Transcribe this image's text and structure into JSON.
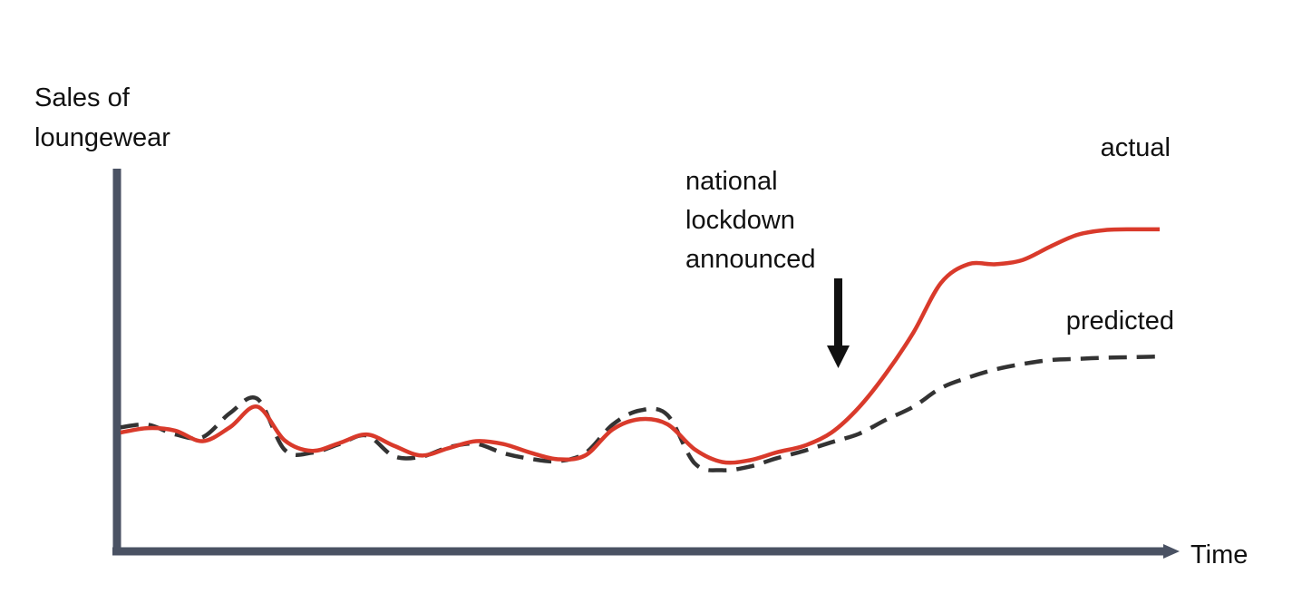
{
  "chart_data": {
    "type": "line",
    "title": "",
    "ylabel": [
      "Sales of",
      "loungewear"
    ],
    "xlabel": "Time",
    "x_ticks": false,
    "y_ticks": false,
    "grid": false,
    "legend": "inline labels at right end of lines",
    "annotation": {
      "lines": [
        "national",
        "lockdown",
        "announced"
      ],
      "arrow": "pointing down to the actual line"
    },
    "series": [
      {
        "name": "actual",
        "color": "#d93a2b",
        "style": "solid",
        "values": [
          5.47,
          5.68,
          5.56,
          5.06,
          5.72,
          6.7,
          5.1,
          4.6,
          4.97,
          5.38,
          4.84,
          4.38,
          4.73,
          5.06,
          4.92,
          4.51,
          4.2,
          4.39,
          5.62,
          6.1,
          5.86,
          4.67,
          4.07,
          4.15,
          4.53,
          4.84,
          5.47,
          6.66,
          8.29,
          10.23,
          12.57,
          13.46,
          13.46,
          13.67,
          14.3,
          14.86,
          15.08,
          15.12,
          15.12
        ],
        "label": "actual"
      },
      {
        "name": "predicted",
        "color": "#333333",
        "style": "dashed",
        "values": [
          5.72,
          5.84,
          5.38,
          5.25,
          6.39,
          7.07,
          4.65,
          4.51,
          4.92,
          5.33,
          4.34,
          4.32,
          4.77,
          4.93,
          4.49,
          4.22,
          4.11,
          4.5,
          5.85,
          6.52,
          6.3,
          4.0,
          3.68,
          3.85,
          4.25,
          4.6,
          5.01,
          5.41,
          6.08,
          6.7,
          7.58,
          8.08,
          8.47,
          8.73,
          8.91,
          8.97,
          9.02,
          9.05,
          9.08
        ],
        "label": "predicted"
      }
    ],
    "axis_color": "#4a5263"
  }
}
